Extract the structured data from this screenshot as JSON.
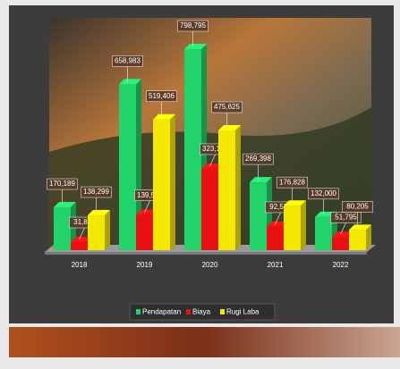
{
  "chart_data": {
    "type": "bar3d",
    "categories": [
      "2018",
      "2019",
      "2020",
      "2021",
      "2022"
    ],
    "series": [
      {
        "name": "Pendapatan",
        "color": "#22d36a",
        "values": [
          170189,
          658983,
          798795,
          269398,
          132000
        ],
        "value_labels": [
          "170,189",
          "658,983",
          "798,795",
          "269,398",
          "132,000"
        ]
      },
      {
        "name": "Biaya",
        "color": "#e81010",
        "values": [
          31890,
          139577,
          323171,
          92570,
          51795
        ],
        "value_labels": [
          "31,890",
          "139,577",
          "323,171",
          "92,570",
          "51,795"
        ]
      },
      {
        "name": "Rugi Laba",
        "color": "#f5e800",
        "values": [
          138299,
          519406,
          475625,
          176828,
          80205
        ],
        "value_labels": [
          "138,299",
          "519,406",
          "475,625",
          "176,828",
          "80,205"
        ]
      }
    ],
    "legend": "bottom"
  }
}
